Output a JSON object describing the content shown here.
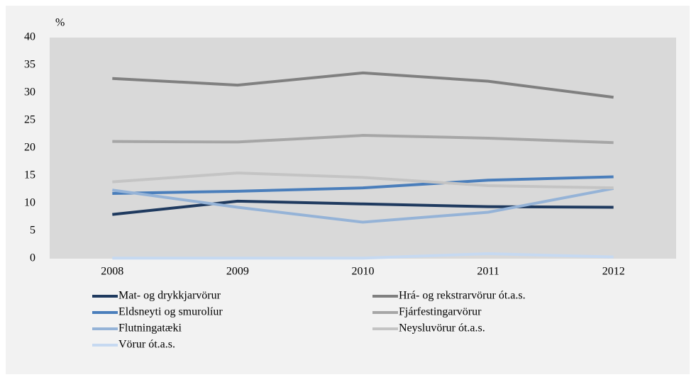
{
  "chart_data": {
    "type": "line",
    "y_unit": "%",
    "categories": [
      "2008",
      "2009",
      "2010",
      "2011",
      "2012"
    ],
    "series": [
      {
        "name": "Mat- og drykkjarvörur",
        "color": "#1f3a5f",
        "values": [
          8.0,
          10.4,
          9.9,
          9.4,
          9.3
        ]
      },
      {
        "name": "Hrá- og rekstrarvörur ót.a.s.",
        "color": "#808080",
        "values": [
          32.6,
          31.4,
          33.6,
          32.1,
          29.2
        ]
      },
      {
        "name": "Eldsneyti og smurolíur",
        "color": "#4a7ebb",
        "values": [
          11.8,
          12.2,
          12.8,
          14.2,
          14.8
        ]
      },
      {
        "name": "Fjárfestingarvörur",
        "color": "#a6a6a6",
        "values": [
          21.2,
          21.1,
          22.3,
          21.8,
          21.0
        ]
      },
      {
        "name": "Flutningatæki",
        "color": "#95b3d7",
        "values": [
          12.4,
          9.3,
          6.6,
          8.4,
          12.7
        ]
      },
      {
        "name": "Neysluvörur ót.a.s.",
        "color": "#c4c4c4",
        "values": [
          13.9,
          15.5,
          14.7,
          13.2,
          12.8
        ]
      },
      {
        "name": "Vörur ót.a.s.",
        "color": "#c6d9f1",
        "values": [
          0.1,
          0.1,
          0.1,
          0.9,
          0.3
        ]
      }
    ],
    "ylim": [
      0,
      40
    ],
    "yticks": [
      0,
      5,
      10,
      15,
      20,
      25,
      30,
      35,
      40
    ],
    "grid": false
  }
}
